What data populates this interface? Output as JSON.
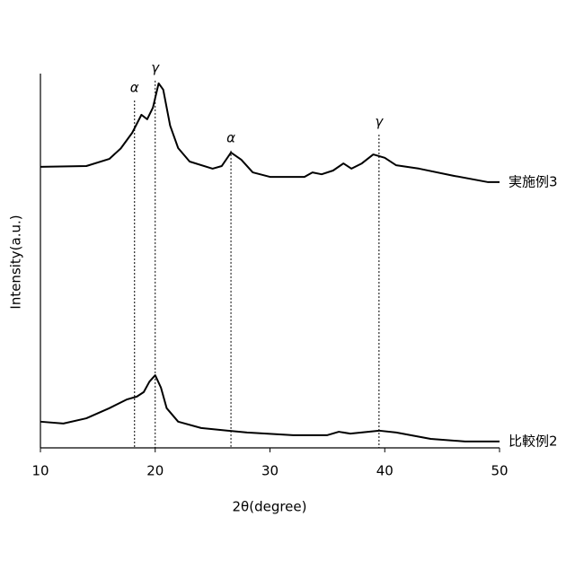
{
  "chart_data": {
    "type": "line",
    "xlabel": "2θ(degree)",
    "ylabel": "Intensity(a.u.)",
    "xlim": [
      10,
      50
    ],
    "xticks": [
      10,
      20,
      30,
      40,
      50
    ],
    "ylim": [
      0,
      100
    ],
    "series": [
      {
        "name": "実施例3",
        "color": "#000000",
        "x": [
          10,
          14,
          16,
          17,
          18,
          18.8,
          19.3,
          19.8,
          20.3,
          20.7,
          21.3,
          22,
          23,
          25,
          25.8,
          26.6,
          27.5,
          28.5,
          30,
          33,
          33.7,
          34.5,
          35.5,
          36.4,
          37.1,
          38,
          39,
          40,
          41,
          43,
          46,
          49,
          50
        ],
        "values": [
          75.1,
          75.3,
          77.2,
          80,
          84.2,
          89,
          87.8,
          90.9,
          97.4,
          95.7,
          86.1,
          80.1,
          76.5,
          74.6,
          75.3,
          78.9,
          77,
          73.6,
          72.4,
          72.4,
          73.6,
          73.1,
          74.1,
          76,
          74.6,
          76,
          78.4,
          77.5,
          75.5,
          74.6,
          72.7,
          71,
          71
        ]
      },
      {
        "name": "比較例2",
        "color": "#000000",
        "x": [
          10,
          12,
          14,
          16,
          17.5,
          18.4,
          19,
          19.5,
          20,
          20.5,
          21,
          22,
          24,
          28,
          32,
          35,
          36,
          37,
          39.5,
          41,
          44,
          47,
          50
        ],
        "values": [
          7,
          6.5,
          7.9,
          10.6,
          12.9,
          13.7,
          14.9,
          17.7,
          19.4,
          16.1,
          10.6,
          7,
          5.3,
          4.1,
          3.4,
          3.4,
          4.3,
          3.8,
          4.6,
          4.1,
          2.4,
          1.7,
          1.7
        ]
      }
    ],
    "annotations": [
      {
        "label": "α",
        "x": 18.2,
        "y": 92.8
      },
      {
        "label": "γ",
        "x": 20,
        "y": 98.1
      },
      {
        "label": "α",
        "x": 26.6,
        "y": 79.4
      },
      {
        "label": "γ",
        "x": 39.5,
        "y": 83.7
      }
    ]
  }
}
